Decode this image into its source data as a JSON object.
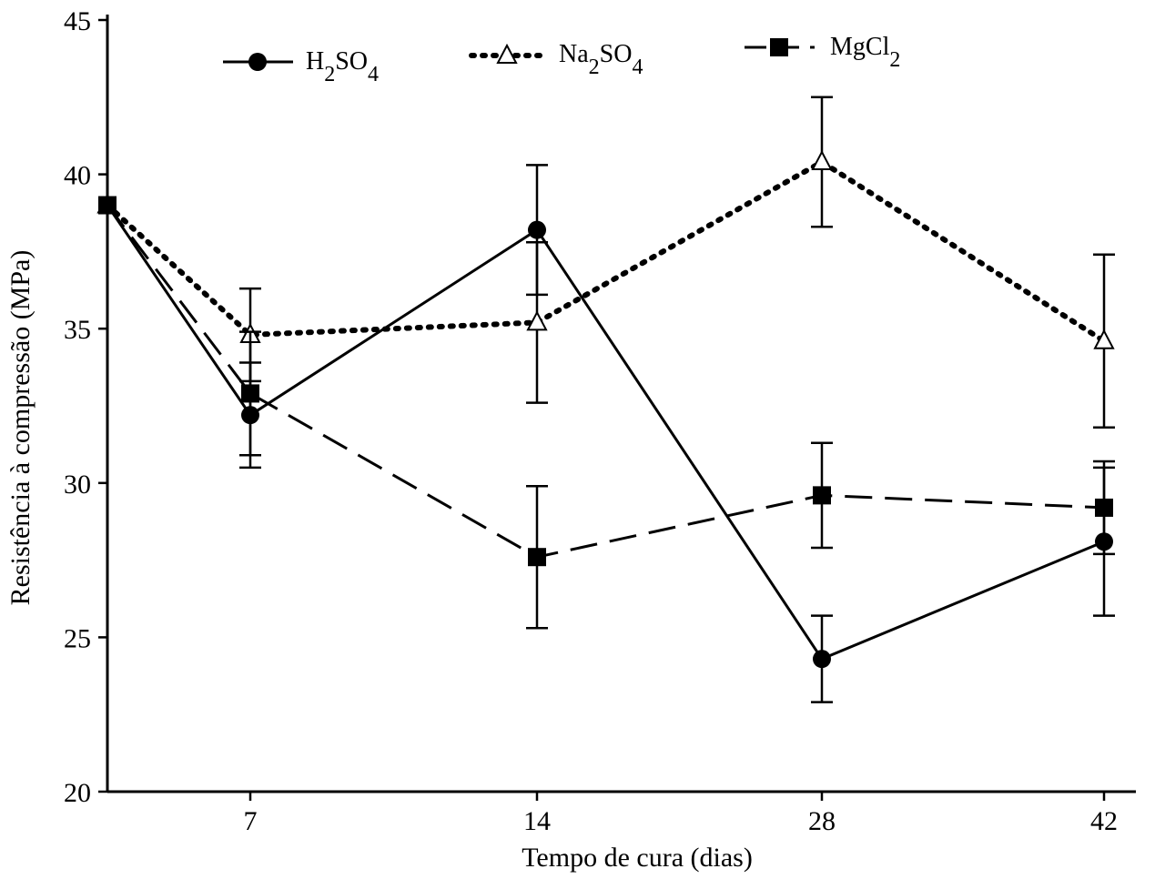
{
  "chart_data": {
    "type": "line",
    "xlabel": "Tempo de cura (dias)",
    "ylabel": "Resistência à compressão (MPa)",
    "x_tick_labels": [
      "7",
      "14",
      "28",
      "42"
    ],
    "y_ticks": [
      "20",
      "25",
      "30",
      "35",
      "40",
      "45"
    ],
    "ylim": [
      20,
      45
    ],
    "categories": [
      "0",
      "7",
      "14",
      "28",
      "42"
    ],
    "legend_position": "top",
    "series": [
      {
        "name": "H2SO4",
        "label_parts": {
          "base": "H",
          "sub1": "2",
          "mid": "SO",
          "sub2": "4"
        },
        "values": [
          39.0,
          32.2,
          38.2,
          24.3,
          28.1
        ],
        "errors": [
          null,
          1.7,
          2.1,
          1.4,
          2.4
        ],
        "marker": "circle",
        "line": "solid",
        "color": "#000000"
      },
      {
        "name": "Na2SO4",
        "label_parts": {
          "base": "Na",
          "sub1": "2",
          "mid": "SO",
          "sub2": "4"
        },
        "values": [
          39.0,
          34.8,
          35.2,
          40.4,
          34.6
        ],
        "errors": [
          null,
          1.5,
          2.6,
          2.1,
          2.8
        ],
        "marker": "open-triangle",
        "line": "dotted",
        "color": "#000000"
      },
      {
        "name": "MgCl2",
        "label_parts": {
          "base": "MgCl",
          "sub1": "2",
          "mid": "",
          "sub2": ""
        },
        "values": [
          39.0,
          32.9,
          27.6,
          29.6,
          29.2
        ],
        "errors": [
          null,
          2.0,
          2.3,
          1.7,
          1.5
        ],
        "marker": "filled-square",
        "line": "dashed",
        "color": "#000000"
      }
    ]
  }
}
